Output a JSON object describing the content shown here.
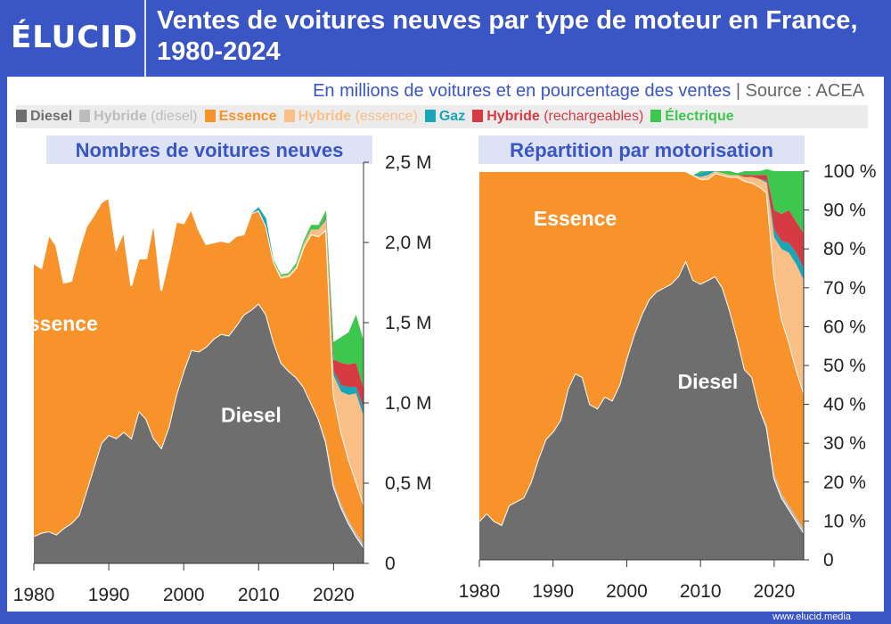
{
  "header": {
    "logo": "ÉLUCID",
    "title": "Ventes de voitures neuves par type de moteur en France, 1980-2024"
  },
  "subtitle": {
    "text": "En millions de voitures et en pourcentage des ventes",
    "separator": "|",
    "source": "Source : ACEA"
  },
  "legend": [
    {
      "name": "Diesel",
      "qualifier": "",
      "color": "#6e6e6e"
    },
    {
      "name": "Hybride",
      "qualifier": "(diesel)",
      "color": "#bdbdbd"
    },
    {
      "name": "Essence",
      "qualifier": "",
      "color": "#f7932a"
    },
    {
      "name": "Hybride",
      "qualifier": "(essence)",
      "color": "#f9bf87"
    },
    {
      "name": "Gaz",
      "qualifier": "",
      "color": "#1aa6b7"
    },
    {
      "name": "Hybride",
      "qualifier": "(rechargeables)",
      "color": "#d63b43"
    },
    {
      "name": "Électrique",
      "qualifier": "",
      "color": "#3ec74f"
    }
  ],
  "footer": "www.elucid.media",
  "chart_data": [
    {
      "type": "area",
      "stacked": true,
      "title": "Nombres de voitures neuves",
      "x": [
        1980,
        1981,
        1982,
        1983,
        1984,
        1985,
        1986,
        1987,
        1988,
        1989,
        1990,
        1991,
        1992,
        1993,
        1994,
        1995,
        1996,
        1997,
        1998,
        1999,
        2000,
        2001,
        2002,
        2003,
        2004,
        2005,
        2006,
        2007,
        2008,
        2009,
        2010,
        2011,
        2012,
        2013,
        2014,
        2015,
        2016,
        2017,
        2018,
        2019,
        2020,
        2021,
        2022,
        2023,
        2024
      ],
      "xticks": [
        1980,
        1990,
        2000,
        2010,
        2020
      ],
      "ylim": [
        0,
        2.5
      ],
      "yticks": [
        0,
        0.5,
        1.0,
        1.5,
        2.0,
        2.5
      ],
      "ytick_labels": [
        "0",
        "0,5 M",
        "1,0 M",
        "1,5 M",
        "2,0 M",
        "2,5 M"
      ],
      "series": [
        {
          "name": "Diesel",
          "values": [
            0.17,
            0.19,
            0.2,
            0.18,
            0.22,
            0.25,
            0.3,
            0.45,
            0.6,
            0.75,
            0.8,
            0.78,
            0.82,
            0.78,
            0.95,
            0.9,
            0.78,
            0.72,
            0.85,
            1.05,
            1.2,
            1.33,
            1.32,
            1.35,
            1.4,
            1.43,
            1.42,
            1.48,
            1.55,
            1.58,
            1.62,
            1.55,
            1.38,
            1.25,
            1.2,
            1.16,
            1.1,
            1.0,
            0.9,
            0.75,
            0.48,
            0.35,
            0.25,
            0.17,
            0.1
          ]
        },
        {
          "name": "Hybride (diesel)",
          "values": [
            0,
            0,
            0,
            0,
            0,
            0,
            0,
            0,
            0,
            0,
            0,
            0,
            0,
            0,
            0,
            0,
            0,
            0,
            0,
            0,
            0,
            0,
            0,
            0,
            0,
            0,
            0,
            0,
            0,
            0,
            0,
            0,
            0,
            0,
            0,
            0,
            0,
            0,
            0,
            0.01,
            0.02,
            0.02,
            0.02,
            0.02,
            0.02
          ]
        },
        {
          "name": "Essence",
          "values": [
            1.7,
            1.65,
            1.85,
            1.8,
            1.53,
            1.51,
            1.65,
            1.65,
            1.57,
            1.5,
            1.48,
            1.18,
            1.25,
            0.95,
            0.95,
            1.0,
            1.35,
            0.98,
            1.05,
            1.08,
            0.92,
            0.88,
            0.76,
            0.64,
            0.6,
            0.58,
            0.58,
            0.56,
            0.5,
            0.6,
            0.58,
            0.55,
            0.5,
            0.53,
            0.59,
            0.68,
            0.87,
            1.05,
            1.14,
            1.32,
            0.55,
            0.45,
            0.38,
            0.32,
            0.25
          ]
        },
        {
          "name": "Hybride (essence)",
          "values": [
            0,
            0,
            0,
            0,
            0,
            0,
            0,
            0,
            0,
            0,
            0,
            0,
            0,
            0,
            0,
            0,
            0,
            0,
            0,
            0,
            0,
            0,
            0,
            0,
            0,
            0,
            0,
            0,
            0,
            0,
            0,
            0,
            0,
            0.01,
            0.01,
            0.01,
            0.02,
            0.03,
            0.04,
            0.06,
            0.12,
            0.25,
            0.4,
            0.55,
            0.55
          ]
        },
        {
          "name": "Gaz",
          "values": [
            0,
            0,
            0,
            0,
            0,
            0,
            0,
            0,
            0,
            0,
            0,
            0,
            0,
            0,
            0,
            0,
            0,
            0,
            0,
            0,
            0,
            0,
            0,
            0,
            0,
            0,
            0,
            0,
            0,
            0,
            0.02,
            0.05,
            0,
            0,
            0,
            0,
            0,
            0,
            0,
            0.01,
            0.03,
            0.04,
            0.05,
            0.04,
            0.05
          ]
        },
        {
          "name": "Hybride (rechargeables)",
          "values": [
            0,
            0,
            0,
            0,
            0,
            0,
            0,
            0,
            0,
            0,
            0,
            0,
            0,
            0,
            0,
            0,
            0,
            0,
            0,
            0,
            0,
            0,
            0,
            0,
            0,
            0,
            0,
            0,
            0,
            0,
            0,
            0,
            0,
            0,
            0,
            0,
            0,
            0,
            0,
            0.01,
            0.07,
            0.14,
            0.14,
            0.15,
            0.12
          ]
        },
        {
          "name": "Électrique",
          "values": [
            0,
            0,
            0,
            0,
            0,
            0,
            0,
            0,
            0,
            0,
            0,
            0,
            0,
            0,
            0,
            0,
            0,
            0,
            0,
            0,
            0,
            0,
            0,
            0,
            0,
            0,
            0,
            0,
            0,
            0,
            0,
            0,
            0.01,
            0.01,
            0.01,
            0.02,
            0.02,
            0.03,
            0.03,
            0.04,
            0.11,
            0.16,
            0.2,
            0.3,
            0.3
          ]
        }
      ],
      "annotations": [
        {
          "text": "Essence",
          "series": "Essence",
          "x": 1983,
          "y": 1.45
        },
        {
          "text": "Diesel",
          "series": "Diesel",
          "x": 2009,
          "y": 0.88
        }
      ]
    },
    {
      "type": "area",
      "stacked": true,
      "percent": true,
      "title": "Répartition par motorisation",
      "x": [
        1980,
        1981,
        1982,
        1983,
        1984,
        1985,
        1986,
        1987,
        1988,
        1989,
        1990,
        1991,
        1992,
        1993,
        1994,
        1995,
        1996,
        1997,
        1998,
        1999,
        2000,
        2001,
        2002,
        2003,
        2004,
        2005,
        2006,
        2007,
        2008,
        2009,
        2010,
        2011,
        2012,
        2013,
        2014,
        2015,
        2016,
        2017,
        2018,
        2019,
        2020,
        2021,
        2022,
        2023,
        2024
      ],
      "xticks": [
        1980,
        1990,
        2000,
        2010,
        2020
      ],
      "ylim": [
        0,
        100
      ],
      "yticks": [
        0,
        10,
        20,
        30,
        40,
        50,
        60,
        70,
        80,
        90,
        100
      ],
      "ytick_labels": [
        "0",
        "10 %",
        "20 %",
        "30 %",
        "40 %",
        "50 %",
        "60 %",
        "70 %",
        "80 %",
        "90 %",
        "100 %"
      ],
      "series": [
        {
          "name": "Diesel",
          "values": [
            10,
            12,
            10,
            9,
            14,
            15,
            16,
            20,
            26,
            31,
            33,
            36,
            44,
            48,
            47,
            40,
            39,
            42,
            41,
            45,
            52,
            58,
            63,
            67,
            69,
            70,
            71,
            73,
            77,
            72,
            71,
            72,
            73,
            70,
            64,
            57,
            49,
            47,
            39,
            34,
            21,
            16,
            13,
            10,
            7
          ]
        },
        {
          "name": "Hybride (diesel)",
          "values": [
            0,
            0,
            0,
            0,
            0,
            0,
            0,
            0,
            0,
            0,
            0,
            0,
            0,
            0,
            0,
            0,
            0,
            0,
            0,
            0,
            0,
            0,
            0,
            0,
            0,
            0,
            0,
            0,
            0,
            0,
            0,
            0,
            0,
            0,
            0,
            0,
            0,
            0,
            0,
            0.5,
            1,
            1,
            1,
            1,
            1
          ]
        },
        {
          "name": "Essence",
          "values": [
            90,
            88,
            90,
            91,
            86,
            85,
            84,
            80,
            74,
            69,
            67,
            64,
            56,
            52,
            53,
            60,
            61,
            58,
            59,
            55,
            48,
            42,
            37,
            33,
            31,
            30,
            29,
            27,
            23,
            27,
            27,
            26,
            26.5,
            29,
            34.5,
            41.5,
            48.5,
            50,
            57,
            60,
            51,
            45,
            42,
            38,
            35
          ]
        },
        {
          "name": "Hybride (essence)",
          "values": [
            0,
            0,
            0,
            0,
            0,
            0,
            0,
            0,
            0,
            0,
            0,
            0,
            0,
            0,
            0,
            0,
            0,
            0,
            0,
            0,
            0,
            0,
            0,
            0,
            0,
            0,
            0,
            0,
            0,
            0,
            0.5,
            1,
            0.5,
            0.5,
            0.5,
            0.5,
            1,
            1.5,
            2,
            2.5,
            10,
            18,
            23,
            27,
            29
          ]
        },
        {
          "name": "Gaz",
          "values": [
            0,
            0,
            0,
            0,
            0,
            0,
            0,
            0,
            0,
            0,
            0,
            0,
            0,
            0,
            0,
            0,
            0,
            0,
            0,
            0,
            0,
            0,
            0,
            0,
            0,
            0,
            0,
            0,
            0,
            0,
            1,
            1,
            0,
            0,
            0,
            0,
            0,
            0,
            0,
            0.5,
            2,
            2,
            2.5,
            3,
            3
          ]
        },
        {
          "name": "Hybride (rechargeables)",
          "values": [
            0,
            0,
            0,
            0,
            0,
            0,
            0,
            0,
            0,
            0,
            0,
            0,
            0,
            0,
            0,
            0,
            0,
            0,
            0,
            0,
            0,
            0,
            0,
            0,
            0,
            0,
            0,
            0,
            0,
            0,
            0,
            0,
            0,
            0,
            0,
            0,
            0.5,
            0.5,
            1,
            1.5,
            5,
            7,
            8.5,
            8,
            9
          ]
        },
        {
          "name": "Électrique",
          "values": [
            0,
            0,
            0,
            0,
            0,
            0,
            0,
            0,
            0,
            0,
            0,
            0,
            0,
            0,
            0,
            0,
            0,
            0,
            0,
            0,
            0,
            0,
            0,
            0,
            0,
            0,
            0,
            0,
            0,
            0,
            0.5,
            0,
            0,
            0.5,
            1,
            0.5,
            1,
            1,
            1,
            1.5,
            10,
            11,
            10,
            13,
            16
          ]
        }
      ],
      "annotations": [
        {
          "text": "Essence",
          "series": "Essence",
          "x": 1993,
          "y": 86
        },
        {
          "text": "Diesel",
          "series": "Diesel",
          "x": 2011,
          "y": 44
        }
      ]
    }
  ]
}
